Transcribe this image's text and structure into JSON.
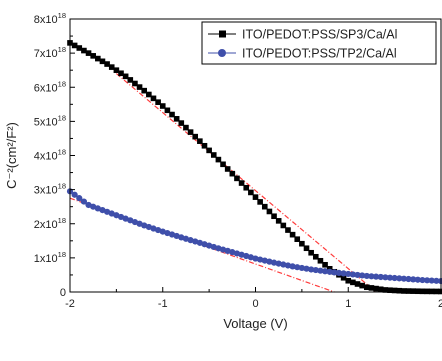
{
  "chart_data": {
    "type": "scatter",
    "title": "",
    "xlabel": "Voltage (V)",
    "ylabel": "C⁻²(cm²/F²)",
    "xlim": [
      -2,
      2
    ],
    "ylim": [
      0,
      8e+18
    ],
    "x_ticks": [
      -2,
      -1,
      0,
      1,
      2
    ],
    "x_tick_labels": [
      "-2",
      "-1",
      "0",
      "1",
      "2"
    ],
    "y_ticks": [
      0,
      1e+18,
      2e+18,
      3e+18,
      4e+18,
      5e+18,
      6e+18,
      7e+18,
      8e+18
    ],
    "y_tick_labels": [
      {
        "base": "0",
        "exp": ""
      },
      {
        "base": "1x10",
        "exp": "18"
      },
      {
        "base": "2x10",
        "exp": "18"
      },
      {
        "base": "3x10",
        "exp": "18"
      },
      {
        "base": "4x10",
        "exp": "18"
      },
      {
        "base": "5x10",
        "exp": "18"
      },
      {
        "base": "6x10",
        "exp": "18"
      },
      {
        "base": "7x10",
        "exp": "18"
      },
      {
        "base": "8x10",
        "exp": "18"
      }
    ],
    "grid": false,
    "legend_position": "top-right",
    "series": [
      {
        "name": "ITO/PEDOT:PSS/SP3/Ca/Al",
        "color": "#000000",
        "marker": "square",
        "points": [
          [
            -2.0,
            7.3e+18
          ],
          [
            -1.8,
            7e+18
          ],
          [
            -1.6,
            6.68e+18
          ],
          [
            -1.4,
            6.32e+18
          ],
          [
            -1.2,
            5.9e+18
          ],
          [
            -1.0,
            5.45e+18
          ],
          [
            -0.8,
            4.95e+18
          ],
          [
            -0.6,
            4.42e+18
          ],
          [
            -0.4,
            3.88e+18
          ],
          [
            -0.2,
            3.33e+18
          ],
          [
            0.0,
            2.78e+18
          ],
          [
            0.2,
            2.22e+18
          ],
          [
            0.4,
            1.68e+18
          ],
          [
            0.6,
            1.15e+18
          ],
          [
            0.8,
            6.8e+17
          ],
          [
            1.0,
            3.3e+17
          ],
          [
            1.2,
            1.4e+17
          ],
          [
            1.4,
            6e+16
          ],
          [
            1.6,
            3e+16
          ],
          [
            1.8,
            2e+16
          ],
          [
            2.0,
            1.5e+16
          ]
        ]
      },
      {
        "name": "ITO/PEDOT:PSS/TP2/Ca/Al",
        "color": "#3f4faa",
        "marker": "circle",
        "points": [
          [
            -2.0,
            2.95e+18
          ],
          [
            -1.8,
            2.55e+18
          ],
          [
            -1.6,
            2.35e+18
          ],
          [
            -1.4,
            2.15e+18
          ],
          [
            -1.2,
            1.95e+18
          ],
          [
            -1.0,
            1.77e+18
          ],
          [
            -0.8,
            1.6e+18
          ],
          [
            -0.6,
            1.44e+18
          ],
          [
            -0.4,
            1.28e+18
          ],
          [
            -0.2,
            1.13e+18
          ],
          [
            0.0,
            9.8e+17
          ],
          [
            0.2,
            8.6e+17
          ],
          [
            0.4,
            7.5e+17
          ],
          [
            0.6,
            6.6e+17
          ],
          [
            0.8,
            5.9e+17
          ],
          [
            1.0,
            5.3e+17
          ],
          [
            1.2,
            4.7e+17
          ],
          [
            1.4,
            4.3e+17
          ],
          [
            1.6,
            3.9e+17
          ],
          [
            1.8,
            3.5e+17
          ],
          [
            2.0,
            3.2e+17
          ]
        ]
      }
    ],
    "fits": [
      {
        "color": "#ff3b3b",
        "from": [
          -1.5,
          6.4e+18
        ],
        "to": [
          1.3,
          0.0
        ]
      },
      {
        "color": "#ff3b3b",
        "from": [
          -2.0,
          2.75e+18
        ],
        "to": [
          0.85,
          0.0
        ]
      }
    ]
  }
}
